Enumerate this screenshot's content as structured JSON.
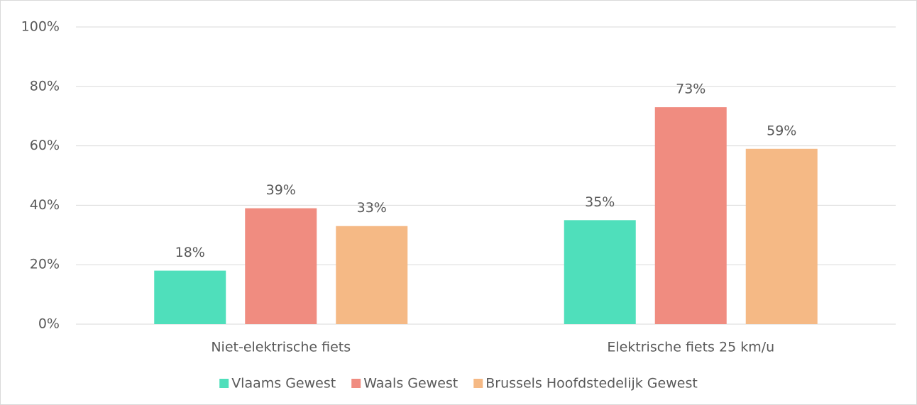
{
  "chart_data": {
    "type": "bar",
    "categories": [
      "Niet-elektrische fiets",
      "Elektrische fiets 25 km/u"
    ],
    "series": [
      {
        "name": "Vlaams Gewest",
        "color": "#4fdfbb",
        "values": [
          18,
          35
        ],
        "value_labels": [
          "18%",
          "35%"
        ]
      },
      {
        "name": "Waals Gewest",
        "color": "#f08c80",
        "values": [
          39,
          73
        ],
        "value_labels": [
          "39%",
          "73%"
        ]
      },
      {
        "name": "Brussels Hoofdstedelijk Gewest",
        "color": "#f5b985",
        "values": [
          33,
          59
        ],
        "value_labels": [
          "33%",
          "59%"
        ]
      }
    ],
    "ylim": [
      0,
      100
    ],
    "yticks": [
      {
        "value": 0,
        "label": "0%"
      },
      {
        "value": 20,
        "label": "20%"
      },
      {
        "value": 40,
        "label": "40%"
      },
      {
        "value": 60,
        "label": "60%"
      },
      {
        "value": 80,
        "label": "80%"
      },
      {
        "value": 100,
        "label": "100%"
      }
    ],
    "grid": true,
    "legend": "bottom"
  }
}
